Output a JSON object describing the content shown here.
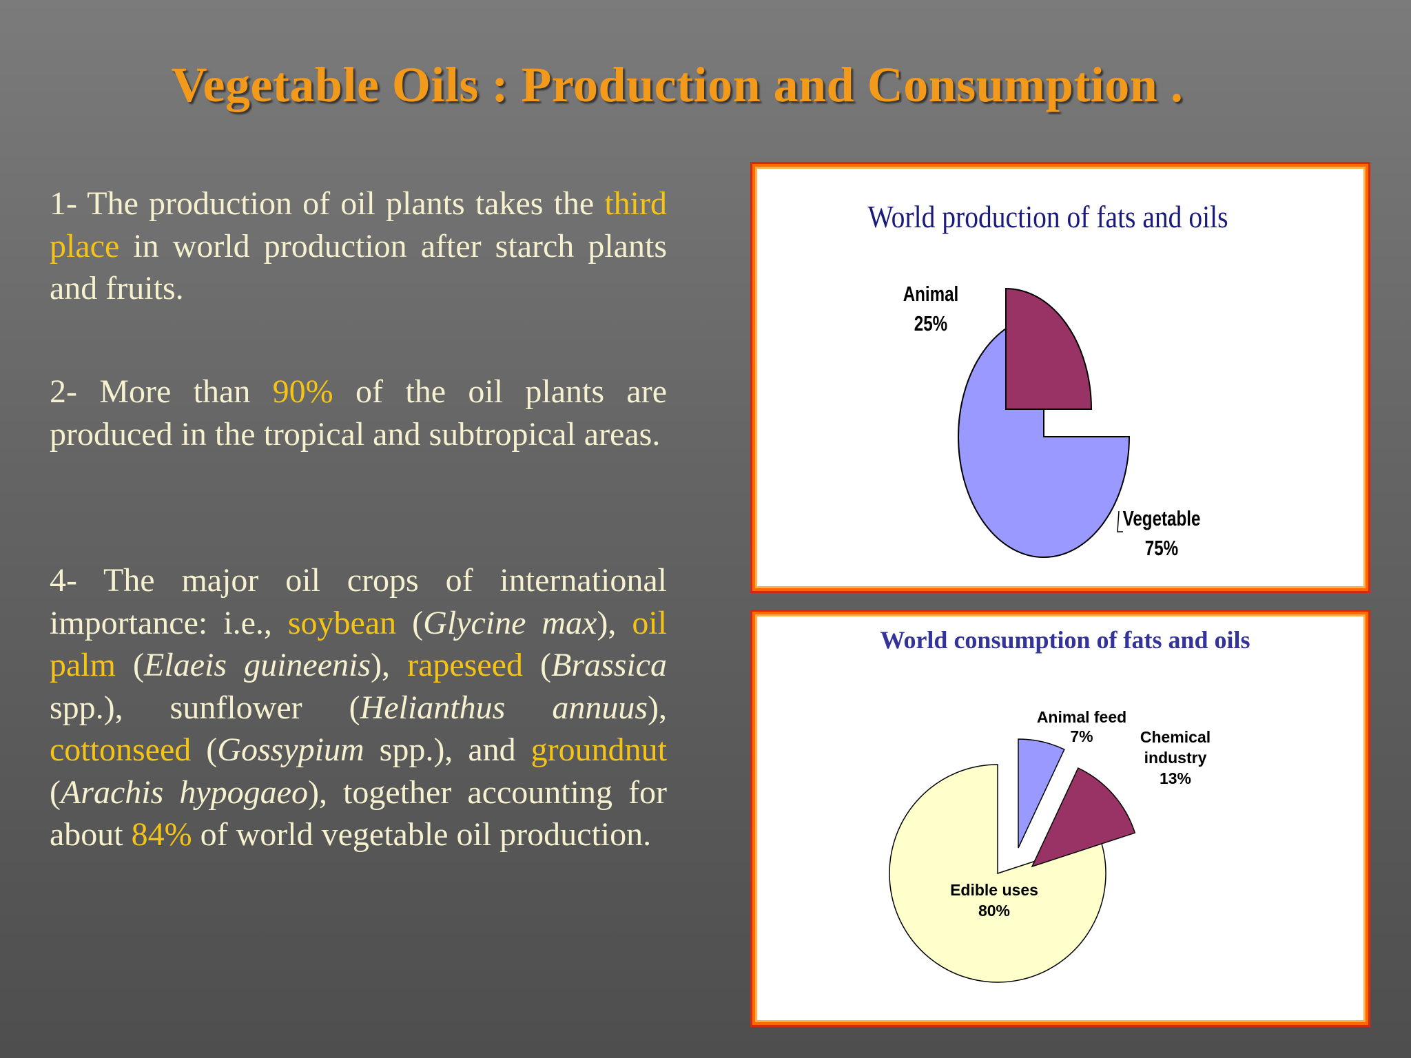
{
  "title": "Vegetable Oils : Production and Consumption .",
  "paragraphs": [
    {
      "id": "p1",
      "segments": [
        {
          "text": "1- The production of oil plants takes the ",
          "style": "normal"
        },
        {
          "text": "third place",
          "style": "highlight"
        },
        {
          "text": " in world production after starch plants and fruits.",
          "style": "normal"
        }
      ]
    },
    {
      "id": "p2",
      "segments": [
        {
          "text": "2- More than ",
          "style": "normal"
        },
        {
          "text": "90%",
          "style": "highlight"
        },
        {
          "text": " of the oil plants are produced in the tropical and subtropical areas.",
          "style": "normal"
        }
      ]
    },
    {
      "id": "p4",
      "segments": [
        {
          "text": "4- The major oil crops of international importance: i.e., ",
          "style": "normal"
        },
        {
          "text": "soybean",
          "style": "highlight"
        },
        {
          "text": " (",
          "style": "normal"
        },
        {
          "text": "Glycine max",
          "style": "italic"
        },
        {
          "text": "), ",
          "style": "normal"
        },
        {
          "text": "oil palm",
          "style": "highlight"
        },
        {
          "text": " (",
          "style": "normal"
        },
        {
          "text": "Elaeis guineenis",
          "style": "italic"
        },
        {
          "text": "), ",
          "style": "normal"
        },
        {
          "text": "rapeseed",
          "style": "highlight"
        },
        {
          "text": " (",
          "style": "normal"
        },
        {
          "text": "Brassica",
          "style": "italic"
        },
        {
          "text": " spp.), sunflower (",
          "style": "normal"
        },
        {
          "text": "Helianthus annuus",
          "style": "italic"
        },
        {
          "text": "), ",
          "style": "normal"
        },
        {
          "text": "cottonseed",
          "style": "highlight"
        },
        {
          "text": " (",
          "style": "normal"
        },
        {
          "text": "Gossypium",
          "style": "italic"
        },
        {
          "text": " spp.), and ",
          "style": "normal"
        },
        {
          "text": "groundnut",
          "style": "highlight"
        },
        {
          "text": " (",
          "style": "normal"
        },
        {
          "text": "Arachis hypogaeo",
          "style": "italic"
        },
        {
          "text": "), together accounting for about ",
          "style": "normal"
        },
        {
          "text": "84%",
          "style": "highlight"
        },
        {
          "text": " of world vegetable oil production.",
          "style": "normal"
        }
      ]
    }
  ],
  "chart_data": [
    {
      "type": "pie",
      "title": "World production of fats and oils",
      "slices": [
        {
          "label": "Animal",
          "value": 25,
          "value_label": "25%",
          "color": "#993366",
          "exploded": true
        },
        {
          "label": "Vegetable",
          "value": 75,
          "value_label": "75%",
          "color": "#9999ff",
          "exploded": false
        }
      ]
    },
    {
      "type": "pie",
      "title": "World consumption of fats and oils",
      "slices": [
        {
          "label": "Animal feed",
          "value": 7,
          "value_label": "7%",
          "color": "#9999ff",
          "exploded": true
        },
        {
          "label": "Chemical industry",
          "label_lines": [
            "Chemical",
            "industry"
          ],
          "value": 13,
          "value_label": "13%",
          "color": "#993366",
          "exploded": true
        },
        {
          "label": "Edible uses",
          "value": 80,
          "value_label": "80%",
          "color": "#ffffcc",
          "exploded": false
        }
      ]
    }
  ],
  "colors": {
    "title": "#f39a1a",
    "body_text": "#f6f1cf",
    "highlight": "#f5c417",
    "panel_border": "#ff6a00",
    "production_title": "#1a1a7a",
    "consumption_title": "#333399"
  }
}
